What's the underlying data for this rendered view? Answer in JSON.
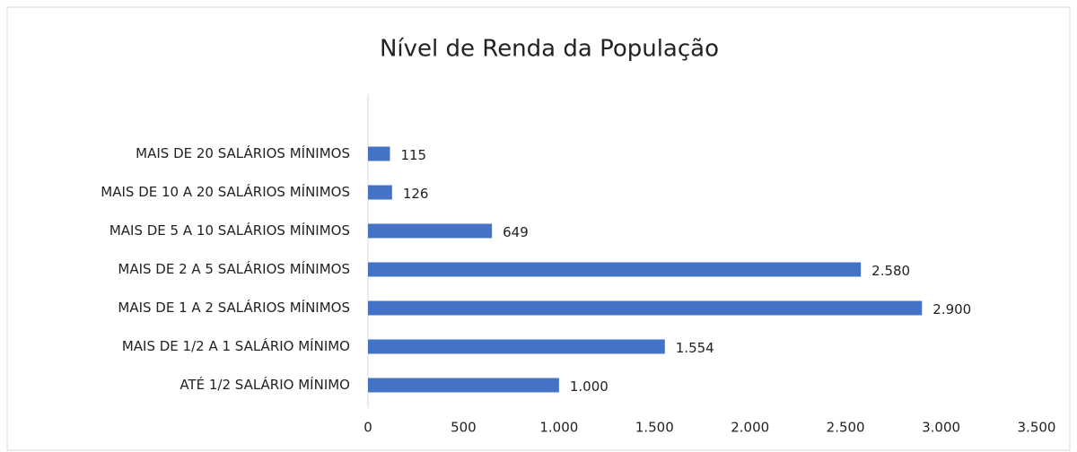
{
  "chart_data": {
    "type": "bar",
    "orientation": "horizontal",
    "title": "Nível de Renda da População",
    "categories": [
      "MAIS DE 20 SALÁRIOS MÍNIMOS",
      "MAIS DE 10 A 20 SALÁRIOS MÍNIMOS",
      "MAIS DE 5 A 10 SALÁRIOS MÍNIMOS",
      "MAIS DE 2 A 5 SALÁRIOS MÍNIMOS",
      "MAIS DE 1 A 2 SALÁRIOS MÍNIMOS",
      "MAIS DE 1/2 A 1 SALÁRIO MÍNIMO",
      "ATÉ 1/2 SALÁRIO MÍNIMO"
    ],
    "values": [
      115,
      126,
      649,
      2580,
      2900,
      1554,
      1000
    ],
    "value_labels": [
      "115",
      "126",
      "649",
      "2.580",
      "2.900",
      "1.554",
      "1.000"
    ],
    "color": "#4472c4",
    "xlim": [
      0,
      3500
    ],
    "xticks": [
      0,
      500,
      {
        "value": 1000,
        "label": "1.000"
      },
      {
        "value": 1500,
        "label": "1.500"
      },
      {
        "value": 2000,
        "label": "2.000"
      },
      {
        "value": 2500,
        "label": "2.500"
      },
      {
        "value": 3000,
        "label": "3.000"
      },
      {
        "value": 3500,
        "label": "3.500"
      }
    ]
  }
}
